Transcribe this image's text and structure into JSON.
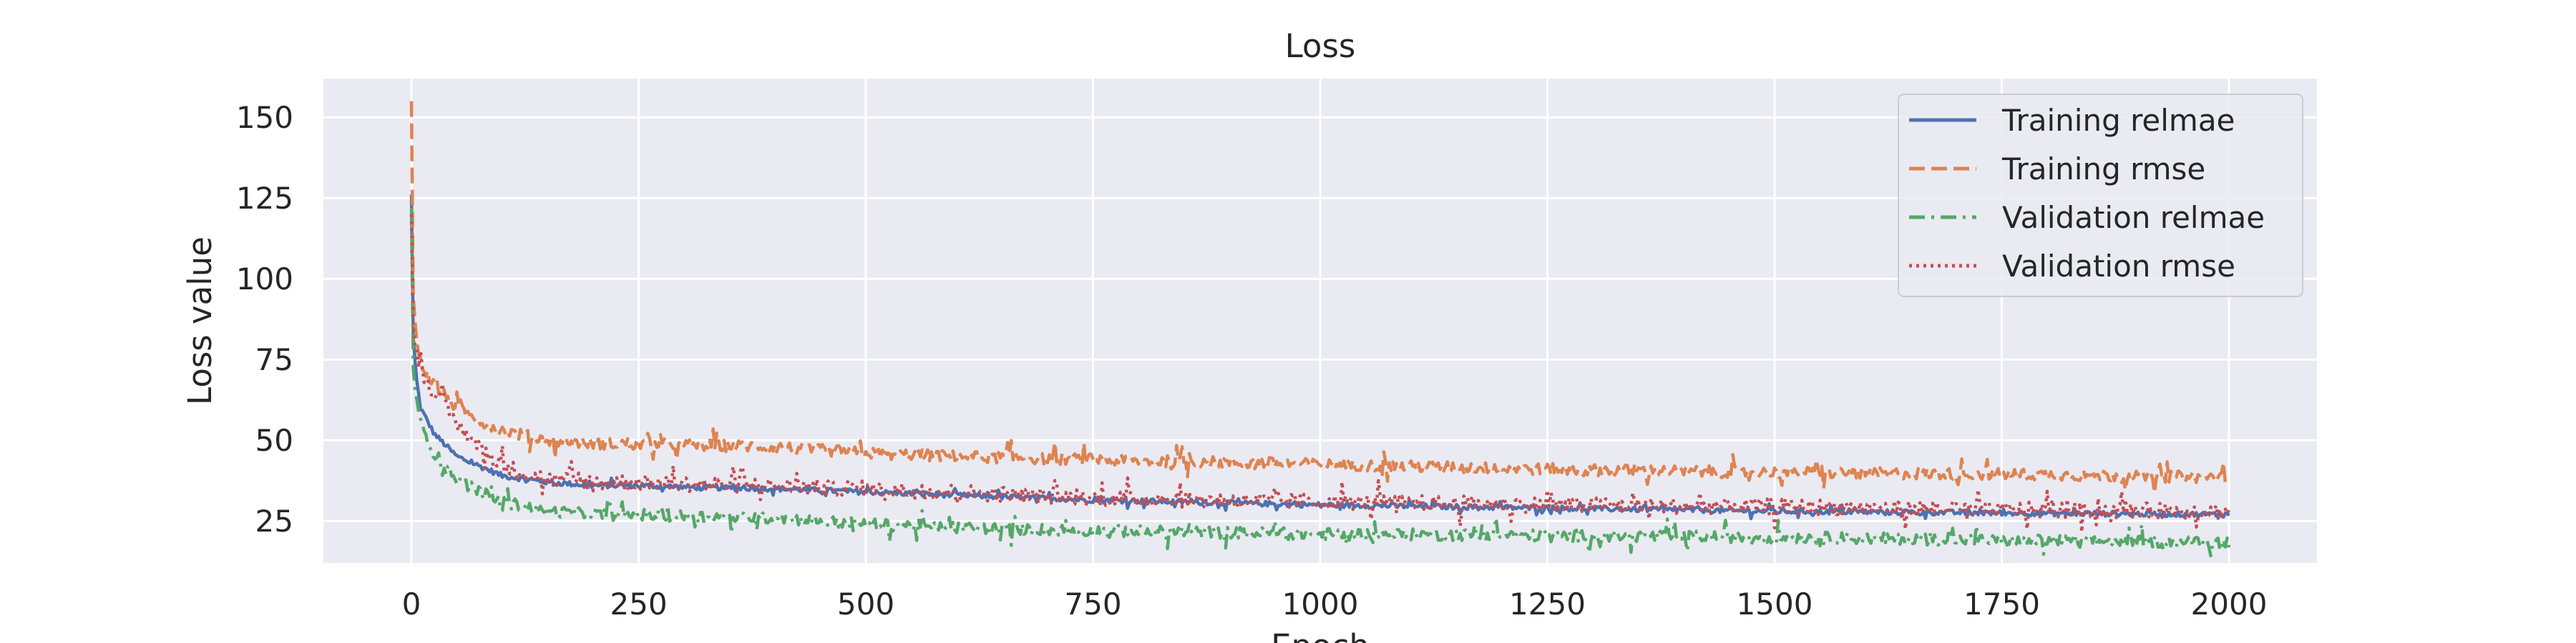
{
  "chart_data": {
    "type": "line",
    "title": "Loss",
    "xlabel": "Epoch",
    "ylabel": "Loss value",
    "xlim": [
      -100,
      2100
    ],
    "ylim": [
      12,
      162
    ],
    "xticks": [
      0,
      250,
      500,
      750,
      1000,
      1250,
      1500,
      1750,
      2000
    ],
    "yticks": [
      25,
      50,
      75,
      100,
      125,
      150
    ],
    "grid": true,
    "legend_position": "top-right",
    "background": "#eaeaf2",
    "series": [
      {
        "name": "Training relmae",
        "color": "#4c72b0",
        "dash": "solid",
        "x": [
          0,
          2,
          5,
          10,
          25,
          50,
          75,
          100,
          150,
          200,
          250,
          300,
          400,
          500,
          600,
          750,
          1000,
          1250,
          1500,
          1750,
          2000
        ],
        "values": [
          126,
          82,
          70,
          60,
          52,
          45,
          42,
          39,
          37,
          36,
          36,
          35.5,
          35,
          34,
          33,
          31.5,
          30,
          29,
          28,
          27.5,
          27
        ],
        "noise": 0.8
      },
      {
        "name": "Training rmse",
        "color": "#dd8452",
        "dash": "dashed",
        "x": [
          0,
          2,
          5,
          10,
          25,
          50,
          75,
          100,
          150,
          200,
          250,
          300,
          400,
          500,
          600,
          750,
          1000,
          1250,
          1500,
          1750,
          2000
        ],
        "values": [
          155,
          95,
          82,
          74,
          67,
          60,
          56,
          53,
          50,
          49,
          49,
          48.5,
          48,
          46,
          45,
          44,
          42.5,
          41,
          40,
          39.5,
          38.5
        ],
        "noise": 1.8
      },
      {
        "name": "Validation relmae",
        "color": "#55a868",
        "dash": "dashdot",
        "x": [
          0,
          2,
          5,
          10,
          25,
          50,
          75,
          100,
          150,
          200,
          250,
          300,
          400,
          500,
          600,
          750,
          1000,
          1250,
          1500,
          1750,
          2000
        ],
        "values": [
          122,
          72,
          63,
          55,
          46,
          38,
          34,
          31,
          28,
          27,
          27,
          26.5,
          26,
          24,
          23,
          22,
          21,
          20.5,
          20,
          19,
          18.5
        ],
        "noise": 1.8
      },
      {
        "name": "Validation rmse",
        "color": "#c44e52",
        "dash": "dotted",
        "x": [
          0,
          2,
          5,
          10,
          25,
          50,
          75,
          100,
          150,
          200,
          250,
          300,
          400,
          500,
          600,
          750,
          1000,
          1250,
          1500,
          1750,
          2000
        ],
        "values": [
          120,
          86,
          78,
          72,
          65,
          55,
          48,
          42,
          38,
          37,
          37,
          36.5,
          36,
          35,
          34,
          32,
          31,
          30,
          29.5,
          28.5,
          28
        ],
        "noise": 2.4
      }
    ]
  }
}
